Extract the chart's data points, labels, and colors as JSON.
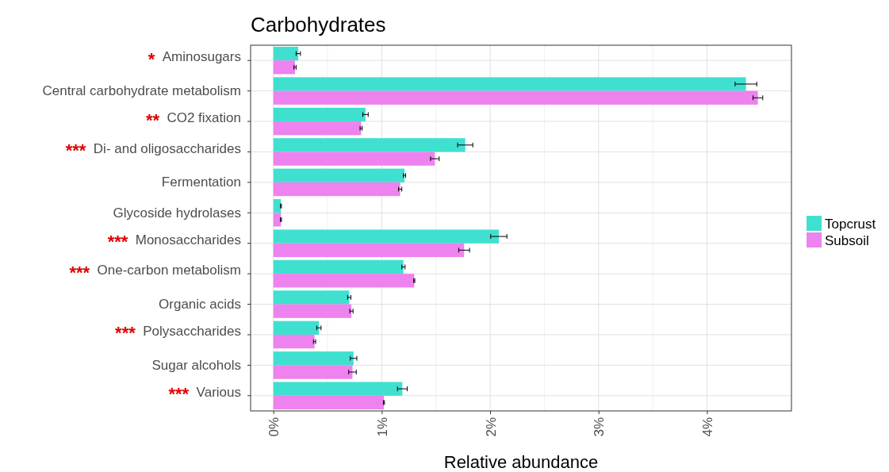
{
  "chart_data": {
    "type": "bar",
    "orientation": "horizontal",
    "title": "Carbohydrates",
    "xlabel": "Relative abundance",
    "categories": [
      "* Aminosugars",
      "Central carbohydrate metabolism",
      "** CO2 fixation",
      "*** Di- and oligosaccharides",
      "Fermentation",
      "Glycoside hydrolases",
      "*** Monosaccharides",
      "*** One-carbon metabolism",
      "Organic acids",
      "*** Polysaccharides",
      "Sugar alcohols",
      "*** Various"
    ],
    "series": [
      {
        "name": "Topcrust",
        "color": "#40e0d0",
        "values": [
          0.23,
          4.36,
          0.85,
          1.77,
          1.21,
          0.07,
          2.08,
          1.2,
          0.7,
          0.42,
          0.74,
          1.19
        ],
        "errors": [
          0.02,
          0.1,
          0.025,
          0.07,
          0.01,
          0.005,
          0.075,
          0.015,
          0.015,
          0.02,
          0.03,
          0.045
        ]
      },
      {
        "name": "Subsoil",
        "color": "#ee82ee",
        "values": [
          0.2,
          4.47,
          0.81,
          1.49,
          1.17,
          0.07,
          1.76,
          1.3,
          0.72,
          0.38,
          0.73,
          1.02
        ],
        "errors": [
          0.01,
          0.045,
          0.01,
          0.04,
          0.015,
          0.005,
          0.05,
          0.005,
          0.015,
          0.01,
          0.035,
          0.005
        ]
      }
    ],
    "xlim": [
      -0.21,
      4.78
    ],
    "xticks": [
      {
        "value": 0,
        "label": "0%"
      },
      {
        "value": 1,
        "label": "1%"
      },
      {
        "value": 2,
        "label": "2%"
      },
      {
        "value": 3,
        "label": "3%"
      },
      {
        "value": 4,
        "label": "4%"
      }
    ],
    "grid": true,
    "legend": "right"
  }
}
